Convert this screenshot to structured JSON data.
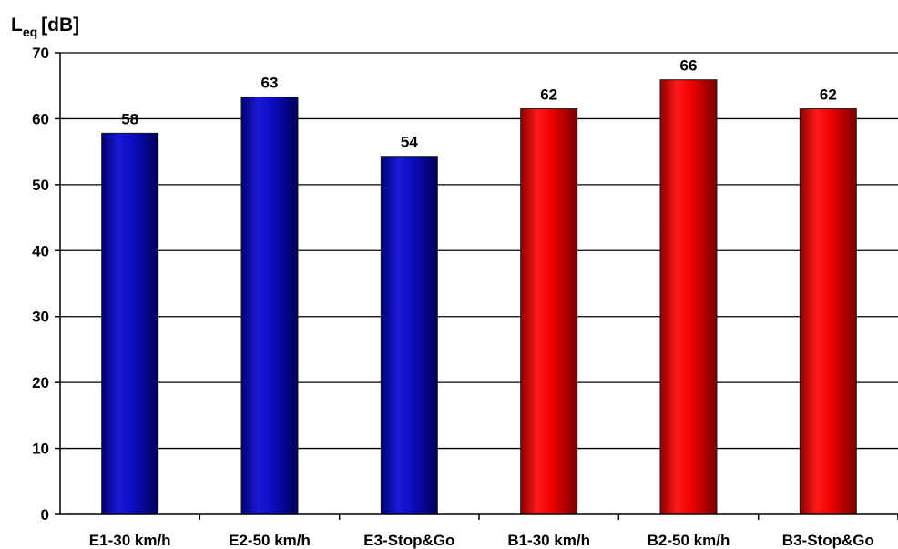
{
  "chart_data": {
    "type": "bar",
    "ylabel": {
      "main": "L",
      "subscript": "eq",
      "unit": "[dB]"
    },
    "xlabel": "",
    "ylim": [
      0,
      70
    ],
    "yticks": [
      0,
      10,
      20,
      30,
      40,
      50,
      60,
      70
    ],
    "grid": true,
    "categories": [
      "E1-30 km/h",
      "E2-50 km/h",
      "E3-Stop&Go",
      "B1-30 km/h",
      "B2-50 km/h",
      "B3-Stop&Go"
    ],
    "values": [
      57.8,
      63.3,
      54.3,
      61.5,
      65.9,
      61.5
    ],
    "data_labels": [
      "58",
      "63",
      "54",
      "62",
      "66",
      "62"
    ],
    "bar_colors": [
      "#0a0aa8",
      "#0a0aa8",
      "#0a0aa8",
      "#e00000",
      "#e00000",
      "#e00000"
    ]
  }
}
